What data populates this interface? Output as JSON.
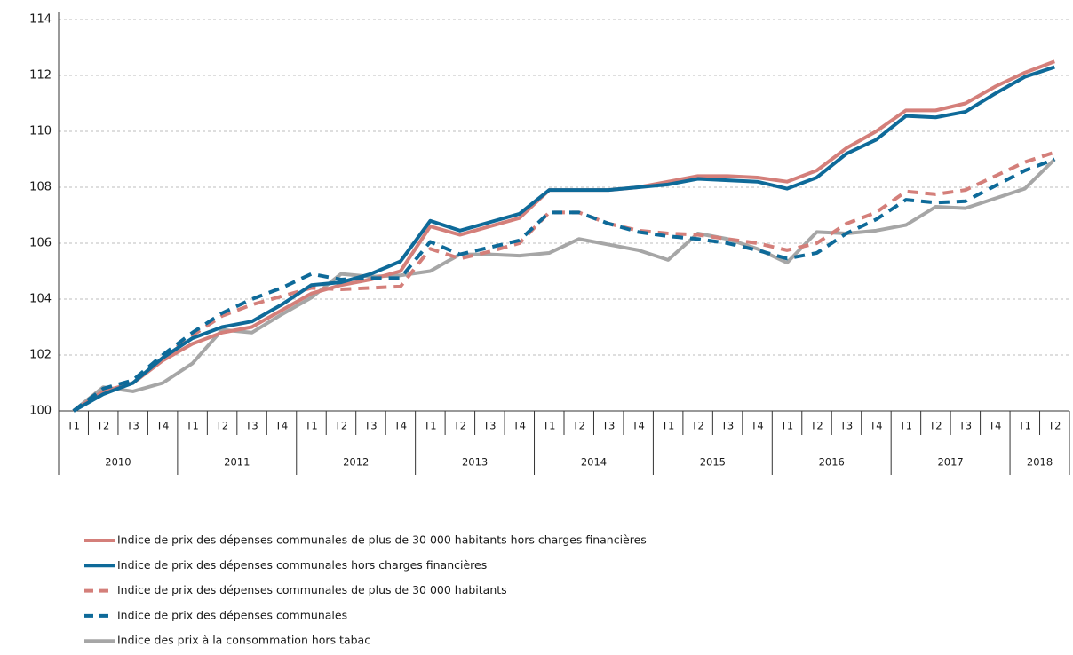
{
  "chart_data": {
    "type": "line",
    "categories": [
      "T1",
      "T2",
      "T3",
      "T4",
      "T1",
      "T2",
      "T3",
      "T4",
      "T1",
      "T2",
      "T3",
      "T4",
      "T1",
      "T2",
      "T3",
      "T4",
      "T1",
      "T2",
      "T3",
      "T4",
      "T1",
      "T2",
      "T3",
      "T4",
      "T1",
      "T2",
      "T3",
      "T4",
      "T1",
      "T2",
      "T3",
      "T4",
      "T1",
      "T2"
    ],
    "years": [
      "2010",
      "2011",
      "2012",
      "2013",
      "2014",
      "2015",
      "2016",
      "2017",
      "2018"
    ],
    "ylim": [
      100,
      114
    ],
    "yticks": [
      100,
      102,
      104,
      106,
      108,
      110,
      112,
      114
    ],
    "grid": true,
    "legend": "bottom",
    "series": [
      {
        "name": "Indice de prix des dépenses communales de plus de 30 000 habitants hors charges financières",
        "color": "#d47f7a",
        "dashed": false,
        "values": [
          100,
          100.7,
          101.0,
          101.8,
          102.4,
          102.8,
          103.0,
          103.6,
          104.2,
          104.5,
          104.7,
          105.0,
          106.6,
          106.3,
          106.6,
          106.9,
          107.9,
          107.9,
          107.9,
          108.0,
          108.2,
          108.4,
          108.4,
          108.35,
          108.2,
          108.6,
          109.4,
          110.0,
          110.75,
          110.75,
          111.0,
          111.6,
          112.1,
          112.5
        ]
      },
      {
        "name": "Indice de prix des dépenses communales hors charges financières",
        "color": "#0e6a99",
        "dashed": false,
        "values": [
          100,
          100.6,
          101.0,
          101.9,
          102.6,
          103.0,
          103.2,
          103.8,
          104.5,
          104.6,
          104.9,
          105.35,
          106.8,
          106.45,
          106.75,
          107.05,
          107.9,
          107.9,
          107.9,
          108.0,
          108.1,
          108.3,
          108.25,
          108.2,
          107.95,
          108.35,
          109.2,
          109.7,
          110.55,
          110.5,
          110.7,
          111.35,
          111.95,
          112.3
        ]
      },
      {
        "name": "Indice de prix des dépenses communales de plus de 30 000 habitants",
        "color": "#d47f7a",
        "dashed": true,
        "values": [
          100,
          100.8,
          101.0,
          101.9,
          102.7,
          103.4,
          103.8,
          104.1,
          104.4,
          104.35,
          104.4,
          104.45,
          105.8,
          105.45,
          105.7,
          106.0,
          107.1,
          107.1,
          106.7,
          106.45,
          106.35,
          106.3,
          106.15,
          106.0,
          105.75,
          106.0,
          106.7,
          107.1,
          107.85,
          107.75,
          107.9,
          108.4,
          108.9,
          109.25
        ]
      },
      {
        "name": "Indice de prix des dépenses communales",
        "color": "#0e6a99",
        "dashed": true,
        "values": [
          100,
          100.8,
          101.1,
          102.0,
          102.8,
          103.5,
          104.0,
          104.4,
          104.9,
          104.7,
          104.75,
          104.75,
          106.05,
          105.6,
          105.85,
          106.1,
          107.1,
          107.1,
          106.7,
          106.4,
          106.25,
          106.15,
          106.0,
          105.75,
          105.45,
          105.65,
          106.35,
          106.85,
          107.55,
          107.45,
          107.5,
          108.05,
          108.6,
          109.0
        ]
      },
      {
        "name": "Indice des prix à la consommation hors tabac",
        "color": "#a6a6a6",
        "dashed": false,
        "values": [
          100,
          100.85,
          100.7,
          101.0,
          101.7,
          102.9,
          102.8,
          103.45,
          104.05,
          104.9,
          104.8,
          104.85,
          105.0,
          105.6,
          105.6,
          105.55,
          105.65,
          106.15,
          105.95,
          105.75,
          105.4,
          106.35,
          106.15,
          105.8,
          105.3,
          106.4,
          106.35,
          106.45,
          106.65,
          107.3,
          107.25,
          107.6,
          107.95,
          109.0
        ]
      }
    ]
  }
}
